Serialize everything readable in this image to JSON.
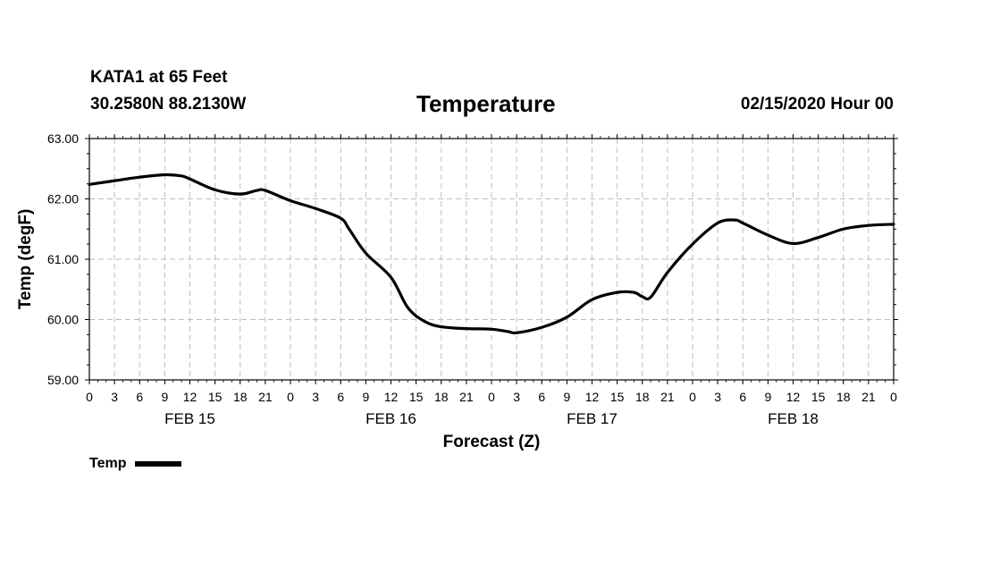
{
  "header": {
    "station": "KATA1 at 65 Feet",
    "location": "30.2580N 88.2130W",
    "title": "Temperature",
    "datetime": "02/15/2020 Hour 00"
  },
  "legend": {
    "label": "Temp",
    "color": "#000000"
  },
  "chart_data": {
    "type": "line",
    "title": "Temperature",
    "xlabel": "Forecast (Z)",
    "ylabel": "Temp (degF)",
    "xlim": [
      0,
      96
    ],
    "ylim": [
      59,
      63
    ],
    "y_ticks": [
      "59.00",
      "60.00",
      "61.00",
      "62.00",
      "63.00"
    ],
    "x_tick_labels": [
      "0",
      "3",
      "6",
      "9",
      "12",
      "15",
      "18",
      "21",
      "0",
      "3",
      "6",
      "9",
      "12",
      "15",
      "18",
      "21",
      "0",
      "3",
      "6",
      "9",
      "12",
      "15",
      "18",
      "21",
      "0",
      "3",
      "6",
      "9",
      "12",
      "15",
      "18",
      "21",
      "0"
    ],
    "day_labels": [
      {
        "label": "FEB 15",
        "hour": 12
      },
      {
        "label": "FEB 16",
        "hour": 36
      },
      {
        "label": "FEB 17",
        "hour": 60
      },
      {
        "label": "FEB 18",
        "hour": 84
      }
    ],
    "grid": true,
    "series": [
      {
        "name": "Temp",
        "x": [
          0,
          3,
          6,
          9,
          11,
          12,
          15,
          18,
          20,
          21,
          24,
          27,
          30,
          31,
          33,
          36,
          38,
          40,
          42,
          45,
          48,
          50,
          51,
          54,
          57,
          60,
          63,
          65,
          66,
          67,
          69,
          72,
          75,
          77,
          78,
          81,
          84,
          87,
          90,
          93,
          96
        ],
        "values": [
          62.24,
          62.3,
          62.36,
          62.4,
          62.38,
          62.33,
          62.15,
          62.08,
          62.14,
          62.14,
          61.97,
          61.84,
          61.68,
          61.5,
          61.1,
          60.7,
          60.2,
          59.97,
          59.88,
          59.85,
          59.84,
          59.8,
          59.78,
          59.87,
          60.04,
          60.33,
          60.45,
          60.45,
          60.38,
          60.37,
          60.78,
          61.25,
          61.6,
          61.65,
          61.6,
          61.4,
          61.26,
          61.36,
          61.5,
          61.56,
          61.58
        ]
      }
    ]
  }
}
